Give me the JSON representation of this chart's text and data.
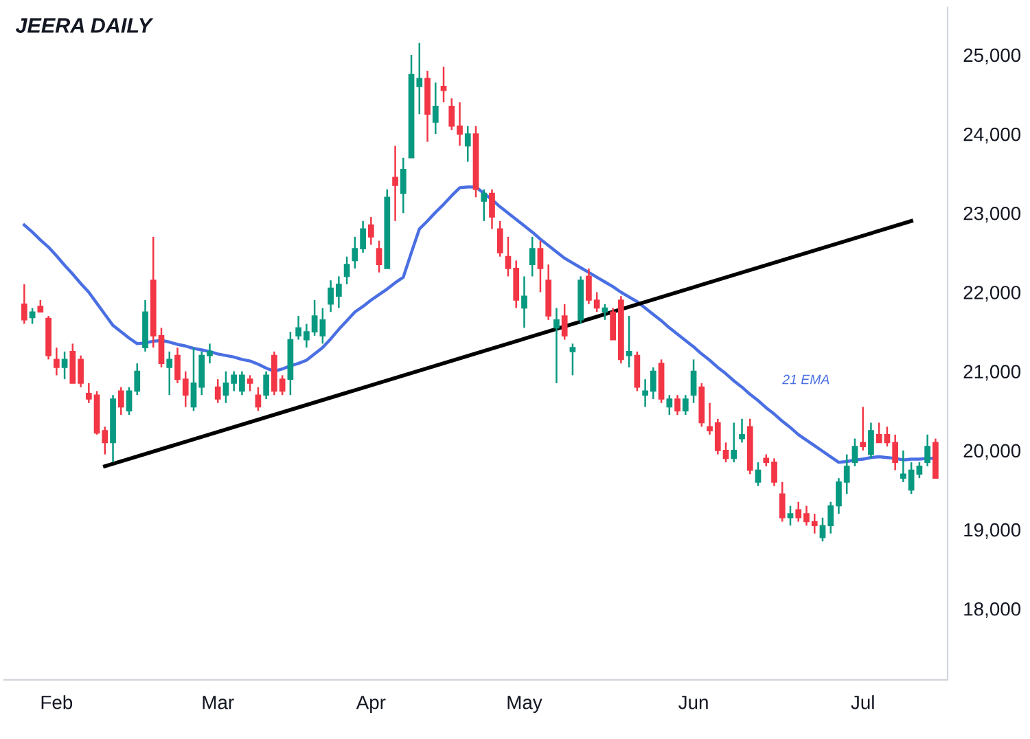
{
  "chart_data": {
    "type": "candlestick",
    "title": "JEERA DAILY",
    "categories": [
      null,
      null,
      null,
      null,
      "Feb",
      null,
      null,
      null,
      null,
      null,
      null,
      null,
      null,
      null,
      null,
      null,
      null,
      null,
      null,
      null,
      null,
      null,
      null,
      null,
      "Mar",
      null,
      null,
      null,
      null,
      null,
      null,
      null,
      null,
      null,
      null,
      null,
      null,
      null,
      null,
      null,
      null,
      null,
      null,
      "Apr",
      null,
      null,
      null,
      null,
      null,
      null,
      null,
      null,
      null,
      null,
      null,
      null,
      null,
      null,
      null,
      null,
      null,
      null,
      "May",
      null,
      null,
      null,
      null,
      null,
      null,
      null,
      null,
      null,
      null,
      null,
      null,
      null,
      null,
      null,
      null,
      null,
      null,
      null,
      null,
      "Jun",
      null,
      null,
      null,
      null,
      null,
      null,
      null,
      null,
      null,
      null,
      null,
      null,
      null,
      null,
      null,
      null,
      null,
      null,
      null,
      null,
      "Jul",
      null,
      null,
      null,
      null,
      null,
      null,
      null,
      null,
      null
    ],
    "ohlc": [
      [
        21850,
        22100,
        21600,
        21650
      ],
      [
        21680,
        21800,
        21600,
        21750
      ],
      [
        21820,
        21900,
        21750,
        21750
      ],
      [
        21670,
        21700,
        21150,
        21200
      ],
      [
        21150,
        21300,
        20950,
        21050
      ],
      [
        21050,
        21250,
        20900,
        21150
      ],
      [
        21250,
        21350,
        20850,
        20850
      ],
      [
        21150,
        21200,
        20800,
        20850
      ],
      [
        20720,
        20850,
        20600,
        20650
      ],
      [
        20700,
        20750,
        20200,
        20220
      ],
      [
        20250,
        20300,
        19950,
        20100
      ],
      [
        20100,
        20700,
        19850,
        20650
      ],
      [
        20750,
        20800,
        20450,
        20550
      ],
      [
        20500,
        20800,
        20450,
        20750
      ],
      [
        20750,
        21100,
        20700,
        21000
      ],
      [
        21300,
        21900,
        21250,
        21750
      ],
      [
        22150,
        22700,
        21300,
        21450
      ],
      [
        21450,
        21550,
        21050,
        21100
      ],
      [
        21050,
        21250,
        20700,
        21150
      ],
      [
        21200,
        21300,
        20850,
        20900
      ],
      [
        20900,
        21000,
        20550,
        20700
      ],
      [
        20550,
        21300,
        20500,
        20850
      ],
      [
        20800,
        21250,
        20700,
        21200
      ],
      [
        21200,
        21350,
        21100,
        21250
      ],
      [
        20800,
        20900,
        20600,
        20650
      ],
      [
        20700,
        21000,
        20600,
        20850
      ],
      [
        20850,
        21000,
        20750,
        20950
      ],
      [
        20750,
        21000,
        20700,
        20950
      ],
      [
        20900,
        20950,
        20750,
        20850
      ],
      [
        20700,
        20800,
        20500,
        20550
      ],
      [
        20700,
        21000,
        20650,
        20950
      ],
      [
        21200,
        21250,
        20700,
        20750
      ],
      [
        20900,
        20950,
        20700,
        20750
      ],
      [
        20900,
        21500,
        20700,
        21400
      ],
      [
        21450,
        21700,
        21400,
        21550
      ],
      [
        21400,
        21600,
        21300,
        21500
      ],
      [
        21500,
        21900,
        21450,
        21700
      ],
      [
        21450,
        21800,
        21350,
        21650
      ],
      [
        21850,
        22150,
        21750,
        22050
      ],
      [
        21950,
        22200,
        21800,
        22100
      ],
      [
        22200,
        22450,
        22100,
        22350
      ],
      [
        22400,
        22700,
        22300,
        22550
      ],
      [
        22550,
        22900,
        22500,
        22800
      ],
      [
        22850,
        22950,
        22600,
        22700
      ],
      [
        22550,
        22650,
        22250,
        22350
      ],
      [
        22300,
        23300,
        22300,
        23200
      ],
      [
        23450,
        23850,
        22900,
        23350
      ],
      [
        23250,
        23700,
        23000,
        23550
      ],
      [
        23700,
        25000,
        23700,
        24750
      ],
      [
        24600,
        25150,
        24250,
        24700
      ],
      [
        24700,
        24800,
        23900,
        24250
      ],
      [
        24150,
        24650,
        24000,
        24350
      ],
      [
        24600,
        24850,
        24400,
        24550
      ],
      [
        24350,
        24450,
        24050,
        24100
      ],
      [
        24100,
        24400,
        23850,
        24000
      ],
      [
        23850,
        24100,
        23650,
        24000
      ],
      [
        24000,
        24100,
        23200,
        23300
      ],
      [
        23150,
        23300,
        22900,
        23250
      ],
      [
        23250,
        23300,
        22800,
        22950
      ],
      [
        22800,
        22900,
        22450,
        22500
      ],
      [
        22450,
        22700,
        22200,
        22300
      ],
      [
        22300,
        22400,
        21800,
        21900
      ],
      [
        21800,
        22200,
        21550,
        21950
      ],
      [
        22350,
        22700,
        22200,
        22550
      ],
      [
        22550,
        22650,
        22000,
        22300
      ],
      [
        22150,
        22350,
        21650,
        21700
      ],
      [
        21550,
        21800,
        20850,
        21650
      ],
      [
        21700,
        21850,
        21400,
        21450
      ],
      [
        21250,
        21350,
        20950,
        21300
      ],
      [
        21650,
        22200,
        21600,
        22150
      ],
      [
        22200,
        22300,
        21850,
        21900
      ],
      [
        21900,
        22000,
        21750,
        21800
      ],
      [
        21750,
        21850,
        21650,
        21800
      ],
      [
        21750,
        21800,
        21400,
        21400
      ],
      [
        21900,
        21950,
        21100,
        21150
      ],
      [
        21200,
        21700,
        21050,
        21250
      ],
      [
        21200,
        21250,
        20750,
        20800
      ],
      [
        20700,
        20900,
        20550,
        20750
      ],
      [
        20750,
        21050,
        20650,
        21000
      ],
      [
        21100,
        21150,
        20600,
        20650
      ],
      [
        20550,
        20700,
        20450,
        20650
      ],
      [
        20650,
        20700,
        20450,
        20500
      ],
      [
        20500,
        20700,
        20450,
        20650
      ],
      [
        20700,
        21150,
        20600,
        21000
      ],
      [
        20800,
        20850,
        20300,
        20350
      ],
      [
        20300,
        20600,
        20200,
        20250
      ],
      [
        20350,
        20400,
        19950,
        20000
      ],
      [
        20000,
        20100,
        19850,
        19900
      ],
      [
        19900,
        20350,
        19850,
        20000
      ],
      [
        20150,
        20400,
        20100,
        20200
      ],
      [
        20300,
        20400,
        19700,
        19750
      ],
      [
        19600,
        19850,
        19550,
        19750
      ],
      [
        19900,
        19950,
        19800,
        19850
      ],
      [
        19850,
        19900,
        19550,
        19600
      ],
      [
        19450,
        19600,
        19100,
        19150
      ],
      [
        19150,
        19300,
        19050,
        19200
      ],
      [
        19250,
        19350,
        19100,
        19150
      ],
      [
        19200,
        19300,
        19050,
        19100
      ],
      [
        19100,
        19200,
        18950,
        19050
      ],
      [
        18900,
        19150,
        18850,
        19050
      ],
      [
        19050,
        19350,
        18950,
        19300
      ],
      [
        19300,
        19650,
        19200,
        19600
      ],
      [
        19600,
        19950,
        19450,
        19800
      ],
      [
        19850,
        20150,
        19800,
        20050
      ],
      [
        20100,
        20550,
        20000,
        20050
      ],
      [
        19950,
        20350,
        19900,
        20250
      ],
      [
        20200,
        20350,
        20100,
        20100
      ],
      [
        20200,
        20300,
        20050,
        20100
      ],
      [
        20100,
        20200,
        19750,
        19850
      ],
      [
        19650,
        20000,
        19600,
        19700
      ],
      [
        19500,
        19850,
        19450,
        19750
      ],
      [
        19700,
        19850,
        19650,
        19800
      ],
      [
        19850,
        20200,
        19800,
        20050
      ],
      [
        20100,
        20150,
        19650,
        19650
      ]
    ],
    "colors": [
      "#f23645",
      "#089981",
      "#f23645",
      "#f23645",
      "#f23645",
      "#089981",
      "#f23645",
      "#f23645",
      "#f23645",
      "#f23645",
      "#f23645",
      "#089981",
      "#f23645",
      "#089981",
      "#089981",
      "#089981",
      "#f23645",
      "#f23645",
      "#089981",
      "#f23645",
      "#f23645",
      "#089981",
      "#089981",
      "#089981",
      "#f23645",
      "#089981",
      "#089981",
      "#089981",
      "#f23645",
      "#f23645",
      "#089981",
      "#f23645",
      "#f23645",
      "#089981",
      "#089981",
      "#089981",
      "#089981",
      "#089981",
      "#089981",
      "#089981",
      "#089981",
      "#089981",
      "#089981",
      "#f23645",
      "#f23645",
      "#089981",
      "#f23645",
      "#089981",
      "#089981",
      "#089981",
      "#f23645",
      "#089981",
      "#f23645",
      "#f23645",
      "#f23645",
      "#089981",
      "#f23645",
      "#089981",
      "#f23645",
      "#f23645",
      "#f23645",
      "#f23645",
      "#089981",
      "#089981",
      "#f23645",
      "#f23645",
      "#089981",
      "#f23645",
      "#089981",
      "#089981",
      "#f23645",
      "#f23645",
      "#089981",
      "#f23645",
      "#f23645",
      "#089981",
      "#f23645",
      "#089981",
      "#089981",
      "#f23645",
      "#089981",
      "#f23645",
      "#089981",
      "#089981",
      "#f23645",
      "#f23645",
      "#f23645",
      "#f23645",
      "#089981",
      "#089981",
      "#f23645",
      "#089981",
      "#f23645",
      "#f23645",
      "#f23645",
      "#089981",
      "#f23645",
      "#f23645",
      "#f23645",
      "#089981",
      "#089981",
      "#089981",
      "#089981",
      "#089981",
      "#f23645",
      "#089981",
      "#f23645",
      "#f23645",
      "#f23645",
      "#089981",
      "#089981",
      "#089981",
      "#089981",
      "#f23645"
    ],
    "series": [
      {
        "type": "line",
        "name": "21 EMA",
        "color": "#4a6fe3",
        "values": [
          22850,
          22760,
          22660,
          22570,
          22460,
          22340,
          22230,
          22110,
          22000,
          21860,
          21720,
          21580,
          21500,
          21420,
          21350,
          21360,
          21380,
          21390,
          21370,
          21340,
          21320,
          21290,
          21270,
          21250,
          21220,
          21200,
          21180,
          21150,
          21130,
          21090,
          21040,
          21000,
          21030,
          21070,
          21100,
          21140,
          21220,
          21300,
          21410,
          21530,
          21640,
          21750,
          21820,
          21900,
          21970,
          22040,
          22120,
          22190,
          22500,
          22800,
          22900,
          23010,
          23110,
          23220,
          23320,
          23330,
          23330,
          23250,
          23170,
          23080,
          23000,
          22920,
          22840,
          22760,
          22670,
          22590,
          22510,
          22430,
          22370,
          22310,
          22250,
          22190,
          22130,
          22070,
          22000,
          21940,
          21880,
          21800,
          21720,
          21640,
          21550,
          21470,
          21390,
          21310,
          21220,
          21140,
          21050,
          20970,
          20880,
          20800,
          20710,
          20630,
          20540,
          20460,
          20370,
          20290,
          20200,
          20130,
          20060,
          19990,
          19920,
          19850,
          19860,
          19880,
          19890,
          19910,
          19920,
          19910,
          19900,
          19880,
          19890,
          19890,
          19900,
          19900
        ]
      },
      {
        "type": "line",
        "color": "#000000",
        "values": [
          null,
          null,
          null,
          null,
          null,
          null,
          null,
          null,
          null,
          null,
          19800,
          null,
          null,
          null,
          null,
          null,
          null,
          null,
          null,
          null,
          null,
          null,
          null,
          null,
          null,
          null,
          null,
          null,
          null,
          null,
          null,
          null,
          null,
          null,
          null,
          null,
          null,
          null,
          null,
          null,
          null,
          null,
          null,
          null,
          null,
          null,
          null,
          null,
          null,
          null,
          null,
          null,
          null,
          null,
          null,
          null,
          null,
          null,
          null,
          null,
          null,
          null,
          null,
          null,
          null,
          null,
          null,
          null,
          null,
          null,
          null,
          null,
          null,
          null,
          null,
          null,
          null,
          null,
          null,
          null,
          null,
          null,
          null,
          null,
          null,
          null,
          null,
          null,
          null,
          null,
          null,
          null,
          null,
          null,
          null,
          null,
          null,
          null,
          null,
          null,
          null,
          null,
          null,
          null,
          null,
          null,
          null,
          null,
          null,
          null,
          22900,
          null,
          null,
          null
        ]
      }
    ],
    "ylim": [
      17100,
      25600
    ],
    "yticks": [
      {
        "value": 18000,
        "label": "18,000"
      },
      {
        "value": 19000,
        "label": "19,000"
      },
      {
        "value": 20000,
        "label": "20,000"
      },
      {
        "value": 21000,
        "label": "21,000"
      },
      {
        "value": 22000,
        "label": "22,000"
      },
      {
        "value": 23000,
        "label": "23,000"
      },
      {
        "value": 24000,
        "label": "24,000"
      },
      {
        "value": 25000,
        "label": "25,000"
      }
    ],
    "grid": false,
    "legend": false
  }
}
